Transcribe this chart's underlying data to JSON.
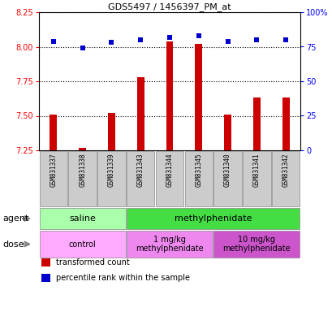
{
  "title": "GDS5497 / 1456397_PM_at",
  "samples": [
    "GSM831337",
    "GSM831338",
    "GSM831339",
    "GSM831343",
    "GSM831344",
    "GSM831345",
    "GSM831340",
    "GSM831341",
    "GSM831342"
  ],
  "bar_values": [
    7.51,
    7.27,
    7.52,
    7.78,
    8.04,
    8.02,
    7.51,
    7.63,
    7.63
  ],
  "dot_values": [
    79,
    74,
    78,
    80,
    82,
    83,
    79,
    80,
    80
  ],
  "ylim_left": [
    7.25,
    8.25
  ],
  "ylim_right": [
    0,
    100
  ],
  "yticks_left": [
    7.25,
    7.5,
    7.75,
    8.0,
    8.25
  ],
  "yticks_right": [
    0,
    25,
    50,
    75,
    100
  ],
  "ytick_labels_right": [
    "0",
    "25",
    "50",
    "75",
    "100%"
  ],
  "bar_color": "#cc0000",
  "dot_color": "#0000cc",
  "agent_groups": [
    {
      "label": "saline",
      "start": 0,
      "end": 3,
      "color": "#aaffaa"
    },
    {
      "label": "methylphenidate",
      "start": 3,
      "end": 9,
      "color": "#44dd44"
    }
  ],
  "dose_groups": [
    {
      "label": "control",
      "start": 0,
      "end": 3,
      "color": "#ffaaff"
    },
    {
      "label": "1 mg/kg\nmethylphenidate",
      "start": 3,
      "end": 6,
      "color": "#ee88ee"
    },
    {
      "label": "10 mg/kg\nmethylphenidate",
      "start": 6,
      "end": 9,
      "color": "#cc55cc"
    }
  ],
  "legend_items": [
    {
      "color": "#cc0000",
      "label": "transformed count"
    },
    {
      "color": "#0000cc",
      "label": "percentile rank within the sample"
    }
  ],
  "bg_color": "#ffffff",
  "tick_bg": "#cccccc"
}
